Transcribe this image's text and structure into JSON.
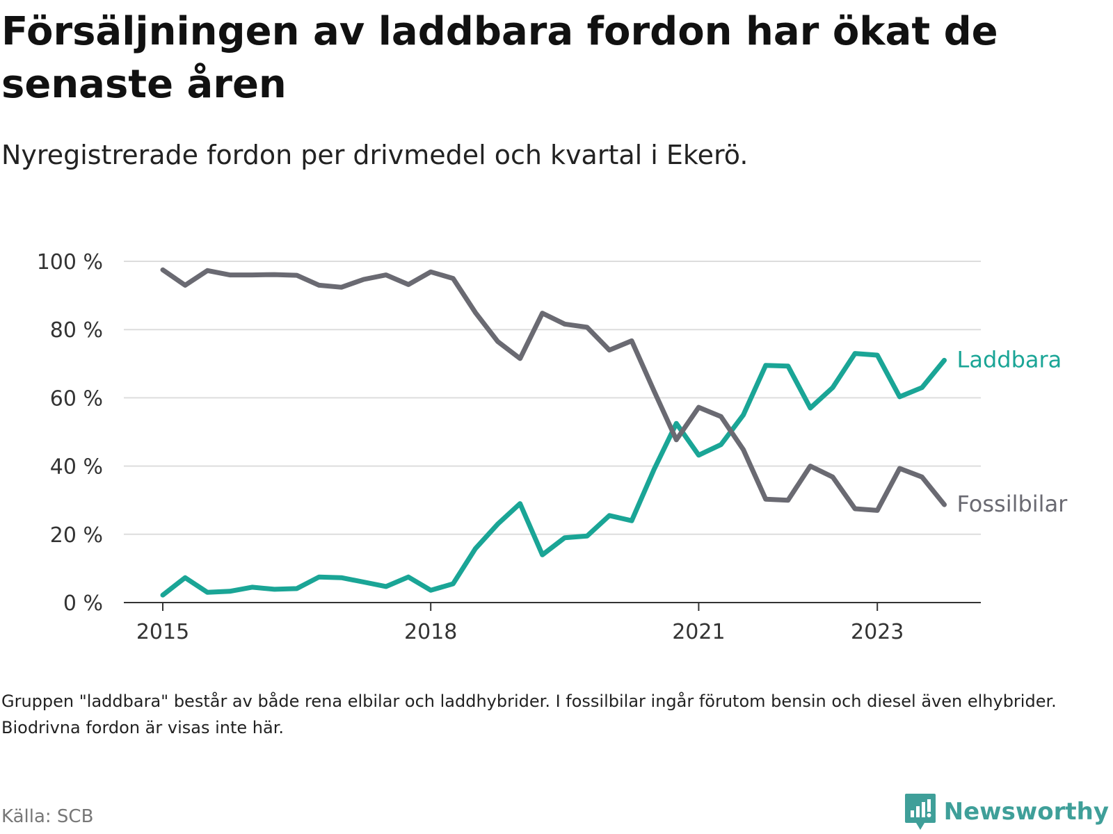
{
  "title": "Försäljningen av laddbara fordon har ökat de senaste åren",
  "subtitle": "Nyregistrerade fordon per drivmedel och kvartal i Ekerö.",
  "note": "Gruppen \"laddbara\" består av både rena elbilar och laddhybrider. I fossilbilar ingår förutom bensin och diesel även elhybrider. Biodrivna fordon är visas inte här.",
  "source": "Källa: SCB",
  "brand": "Newsworthy",
  "colors": {
    "laddbara": "#1aa596",
    "fossil": "#6a6a72",
    "grid": "#dddddd",
    "brand": "#3f9f99"
  },
  "chart_data": {
    "type": "line",
    "title": "Försäljningen av laddbara fordon har ökat de senaste åren",
    "xlabel": "",
    "ylabel": "",
    "x": [
      "2015 Q1",
      "2015 Q2",
      "2015 Q3",
      "2015 Q4",
      "2016 Q1",
      "2016 Q2",
      "2016 Q3",
      "2016 Q4",
      "2017 Q1",
      "2017 Q2",
      "2017 Q3",
      "2017 Q4",
      "2018 Q1",
      "2018 Q2",
      "2018 Q3",
      "2018 Q4",
      "2019 Q1",
      "2019 Q2",
      "2019 Q3",
      "2019 Q4",
      "2020 Q1",
      "2020 Q2",
      "2020 Q3",
      "2020 Q4",
      "2021 Q1",
      "2021 Q2",
      "2021 Q3",
      "2021 Q4",
      "2022 Q1",
      "2022 Q2",
      "2022 Q3",
      "2022 Q4",
      "2023 Q1",
      "2023 Q2",
      "2023 Q3",
      "2023 Q4"
    ],
    "x_ticks": [
      "2015",
      "2018",
      "2021",
      "2023"
    ],
    "y_ticks": [
      "0 %",
      "20 %",
      "40 %",
      "60 %",
      "80 %",
      "100 %"
    ],
    "ylim": [
      0,
      100
    ],
    "series": [
      {
        "name": "Laddbara",
        "values": [
          2.2,
          7.3,
          3.0,
          3.3,
          4.5,
          3.9,
          4.1,
          7.5,
          7.3,
          6.0,
          4.7,
          7.5,
          3.6,
          5.5,
          15.8,
          23.0,
          29.0,
          14.0,
          19.0,
          19.5,
          25.5,
          24.0,
          39.0,
          52.5,
          43.2,
          46.3,
          55.0,
          69.5,
          69.3,
          57.0,
          63.0,
          73.0,
          72.5,
          60.3,
          63.0,
          71.0
        ]
      },
      {
        "name": "Fossilbilar",
        "values": [
          97.5,
          93.0,
          97.3,
          96.0,
          96.0,
          96.1,
          95.9,
          93.0,
          92.4,
          94.7,
          96.0,
          93.2,
          96.9,
          95.0,
          85.0,
          76.5,
          71.5,
          84.8,
          81.6,
          80.7,
          74.0,
          76.7,
          62.0,
          47.7,
          57.2,
          54.5,
          44.8,
          30.3,
          30.0,
          40.0,
          36.8,
          27.5,
          27.0,
          39.3,
          36.8,
          28.7
        ]
      }
    ]
  }
}
